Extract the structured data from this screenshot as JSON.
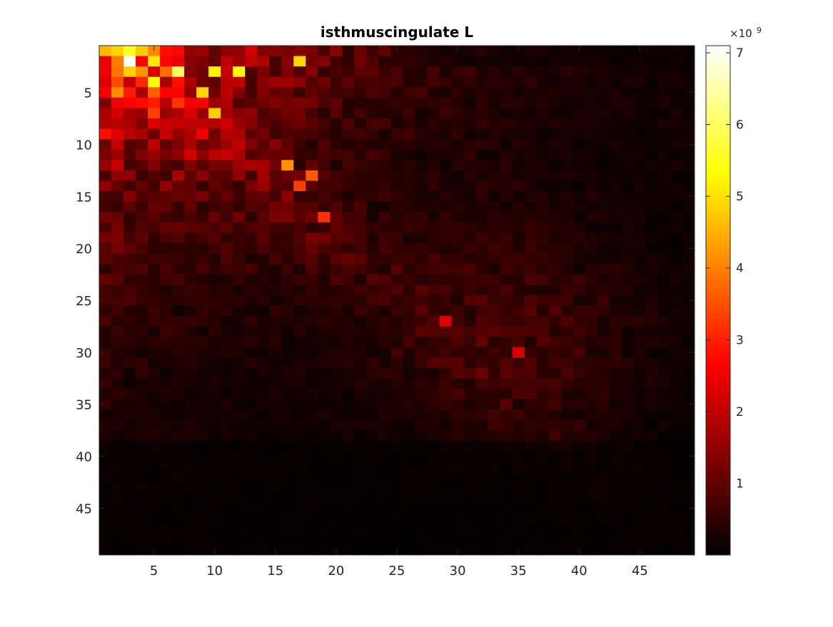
{
  "chart_data": {
    "type": "heatmap",
    "title": "isthmuscingulate L",
    "xlabel": "",
    "ylabel": "",
    "rows": 49,
    "cols": 49,
    "x_ticks": [
      5,
      10,
      15,
      20,
      25,
      30,
      35,
      40,
      45
    ],
    "y_ticks": [
      5,
      10,
      15,
      20,
      25,
      30,
      35,
      40,
      45
    ],
    "colormap": "hot",
    "colorbar": {
      "range": [
        0,
        7100000000
      ],
      "ticks": [
        1,
        2,
        3,
        4,
        5,
        6,
        7
      ],
      "tick_labels": [
        "1",
        "2",
        "3",
        "4",
        "5",
        "6",
        "7"
      ],
      "exponent_base": "×10",
      "exponent_power": "9",
      "scale_factor": 1000000000
    },
    "grid": false,
    "value_model": {
      "description_units": "x1e9",
      "peak_value": 7.1,
      "hotspots": [
        {
          "row": 2,
          "col": 3,
          "value": 7.1
        },
        {
          "row": 1,
          "col": 3,
          "value": 5.6
        },
        {
          "row": 3,
          "col": 7,
          "value": 6.0
        },
        {
          "row": 4,
          "col": 5,
          "value": 5.4
        },
        {
          "row": 3,
          "col": 12,
          "value": 5.3
        },
        {
          "row": 2,
          "col": 5,
          "value": 5.1
        },
        {
          "row": 3,
          "col": 10,
          "value": 5.2
        },
        {
          "row": 2,
          "col": 17,
          "value": 4.9
        },
        {
          "row": 5,
          "col": 9,
          "value": 4.9
        },
        {
          "row": 7,
          "col": 10,
          "value": 4.8
        },
        {
          "row": 12,
          "col": 16,
          "value": 4.2
        },
        {
          "row": 14,
          "col": 17,
          "value": 3.3
        },
        {
          "row": 17,
          "col": 19,
          "value": 3.2
        },
        {
          "row": 13,
          "col": 18,
          "value": 3.6
        },
        {
          "row": 27,
          "col": 29,
          "value": 2.3
        },
        {
          "row": 30,
          "col": 35,
          "value": 2.2
        }
      ],
      "off_diagonal_floor": 0.15
    }
  }
}
